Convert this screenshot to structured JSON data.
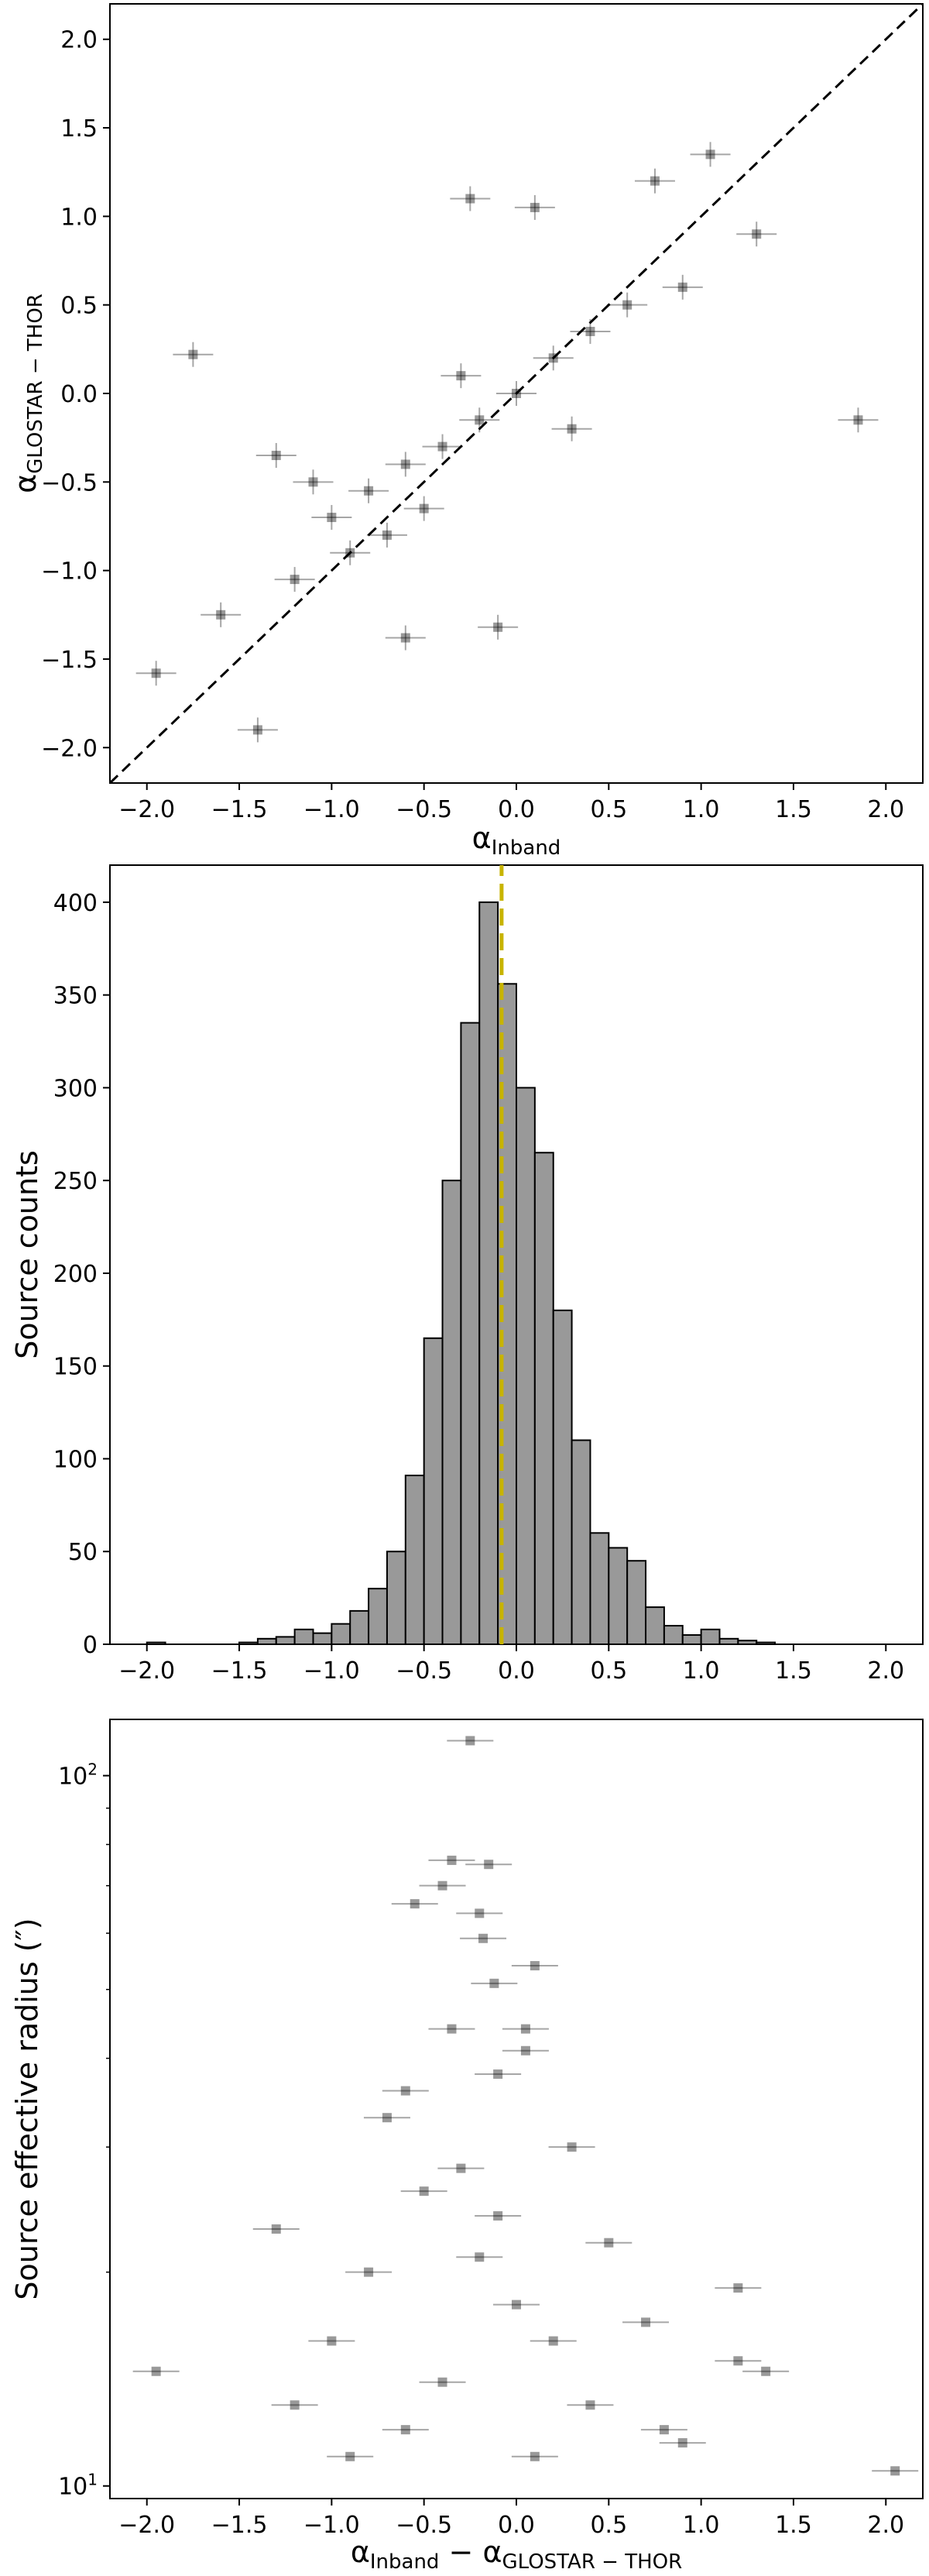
{
  "chart_data": [
    {
      "type": "scatter",
      "xlabel": "α",
      "xlabel_sub": "Inband",
      "ylabel": "α",
      "ylabel_sub": "GLOSTAR − THOR",
      "xlim": [
        -2.2,
        2.2
      ],
      "ylim": [
        -2.2,
        2.2
      ],
      "xticks": [
        -2.0,
        -1.5,
        -1.0,
        -0.5,
        0.0,
        0.5,
        1.0,
        1.5,
        2.0
      ],
      "yticks": [
        -2.0,
        -1.5,
        -1.0,
        -0.5,
        0.0,
        0.5,
        1.0,
        1.5,
        2.0
      ],
      "xtick_labels": [
        "−2.0",
        "−1.5",
        "−1.0",
        "−0.5",
        "0.0",
        "0.5",
        "1.0",
        "1.5",
        "2.0"
      ],
      "ytick_labels": [
        "−2.0",
        "−1.5",
        "−1.0",
        "−0.5",
        "0.0",
        "0.5",
        "1.0",
        "1.5",
        "2.0"
      ],
      "reference_line": {
        "style": "dashed",
        "color": "#000000",
        "from": [
          -2.2,
          -2.2
        ],
        "to": [
          2.2,
          2.2
        ]
      },
      "marker_color": "#000000",
      "points": [
        {
          "x": -1.75,
          "y": 0.22
        },
        {
          "x": 1.85,
          "y": -0.15
        },
        {
          "x": -1.4,
          "y": -1.9
        },
        {
          "x": -1.95,
          "y": -1.58
        },
        {
          "x": -0.25,
          "y": 1.1
        },
        {
          "x": 1.05,
          "y": 1.35
        },
        {
          "x": 0.1,
          "y": 1.05
        },
        {
          "x": 0.75,
          "y": 1.2
        },
        {
          "x": -0.6,
          "y": -1.38
        },
        {
          "x": -0.1,
          "y": -1.32
        },
        {
          "x": 1.3,
          "y": 0.9
        },
        {
          "x": -1.6,
          "y": -1.25
        },
        {
          "x": -1.3,
          "y": -0.35
        },
        {
          "x": -1.0,
          "y": -0.7
        },
        {
          "x": -0.8,
          "y": -0.55
        },
        {
          "x": -0.6,
          "y": -0.4
        },
        {
          "x": -0.4,
          "y": -0.3
        },
        {
          "x": -0.2,
          "y": -0.15
        },
        {
          "x": 0.0,
          "y": 0.0
        },
        {
          "x": 0.2,
          "y": 0.2
        },
        {
          "x": 0.4,
          "y": 0.35
        },
        {
          "x": 0.6,
          "y": 0.5
        },
        {
          "x": -0.9,
          "y": -0.9
        },
        {
          "x": -0.7,
          "y": -0.8
        },
        {
          "x": -1.1,
          "y": -0.5
        },
        {
          "x": -0.5,
          "y": -0.65
        },
        {
          "x": -0.3,
          "y": 0.1
        },
        {
          "x": 0.3,
          "y": -0.2
        },
        {
          "x": -1.2,
          "y": -1.05
        },
        {
          "x": 0.9,
          "y": 0.6
        }
      ]
    },
    {
      "type": "bar",
      "ylabel": "Source counts",
      "xlim": [
        -2.2,
        2.2
      ],
      "ylim": [
        0,
        420
      ],
      "xticks": [
        -2.0,
        -1.5,
        -1.0,
        -0.5,
        0.0,
        0.5,
        1.0,
        1.5,
        2.0
      ],
      "yticks": [
        0,
        50,
        100,
        150,
        200,
        250,
        300,
        350,
        400
      ],
      "xtick_labels": [
        "−2.0",
        "−1.5",
        "−1.0",
        "−0.5",
        "0.0",
        "0.5",
        "1.0",
        "1.5",
        "2.0"
      ],
      "ytick_labels": [
        "0",
        "50",
        "100",
        "150",
        "200",
        "250",
        "300",
        "350",
        "400"
      ],
      "bin_width": 0.1,
      "bin_starts": [
        -2.0,
        -1.9,
        -1.8,
        -1.7,
        -1.6,
        -1.5,
        -1.4,
        -1.3,
        -1.2,
        -1.1,
        -1.0,
        -0.9,
        -0.8,
        -0.7,
        -0.6,
        -0.5,
        -0.4,
        -0.3,
        -0.2,
        -0.1,
        0.0,
        0.1,
        0.2,
        0.3,
        0.4,
        0.5,
        0.6,
        0.7,
        0.8,
        0.9,
        1.0,
        1.1,
        1.2,
        1.3,
        1.4,
        1.5,
        1.6,
        1.7,
        1.8,
        1.9
      ],
      "values": [
        1,
        0,
        0,
        0,
        0,
        1,
        3,
        4,
        8,
        6,
        11,
        18,
        30,
        50,
        91,
        165,
        250,
        335,
        400,
        356,
        300,
        265,
        180,
        110,
        60,
        52,
        45,
        20,
        10,
        5,
        8,
        3,
        2,
        1,
        0,
        0,
        0,
        0,
        0,
        0
      ],
      "bar_color": "#999999",
      "edge_color": "#000000",
      "reference_line": {
        "x": -0.08,
        "style": "dashed",
        "color": "#c8b400"
      }
    },
    {
      "type": "scatter",
      "xlabel": "α",
      "xlabel_sub": "Inband",
      "xlabel_mid": " − α",
      "xlabel_sub2": "GLOSTAR − THOR",
      "ylabel": "Source effective radius (″)",
      "yscale": "log",
      "xlim": [
        -2.2,
        2.2
      ],
      "ylim": [
        9.6,
        120
      ],
      "xticks": [
        -2.0,
        -1.5,
        -1.0,
        -0.5,
        0.0,
        0.5,
        1.0,
        1.5,
        2.0
      ],
      "xtick_labels": [
        "−2.0",
        "−1.5",
        "−1.0",
        "−0.5",
        "0.0",
        "0.5",
        "1.0",
        "1.5",
        "2.0"
      ],
      "yticks": [
        10,
        100
      ],
      "ytick_label_base": "10",
      "ytick_label_exponents": [
        "1",
        "2"
      ],
      "marker_color": "#000000",
      "points": [
        {
          "x": -0.25,
          "y": 112
        },
        {
          "x": -0.35,
          "y": 76
        },
        {
          "x": -0.15,
          "y": 75
        },
        {
          "x": -0.4,
          "y": 70
        },
        {
          "x": -0.55,
          "y": 66
        },
        {
          "x": -0.2,
          "y": 64
        },
        {
          "x": -0.18,
          "y": 59
        },
        {
          "x": 0.1,
          "y": 54
        },
        {
          "x": -0.12,
          "y": 51
        },
        {
          "x": -0.35,
          "y": 44
        },
        {
          "x": 0.05,
          "y": 44
        },
        {
          "x": 0.05,
          "y": 41
        },
        {
          "x": -0.7,
          "y": 33
        },
        {
          "x": -1.3,
          "y": 23
        },
        {
          "x": -1.95,
          "y": 14.5
        },
        {
          "x": 2.05,
          "y": 10.5
        },
        {
          "x": 1.2,
          "y": 15
        },
        {
          "x": 1.35,
          "y": 14.5
        },
        {
          "x": 1.2,
          "y": 19
        },
        {
          "x": -0.6,
          "y": 36
        },
        {
          "x": -0.1,
          "y": 38
        },
        {
          "x": 0.3,
          "y": 30
        },
        {
          "x": -0.3,
          "y": 28
        },
        {
          "x": -0.5,
          "y": 26
        },
        {
          "x": 0.5,
          "y": 22
        },
        {
          "x": -0.8,
          "y": 20
        },
        {
          "x": 0.7,
          "y": 17
        },
        {
          "x": -1.0,
          "y": 16
        },
        {
          "x": 0.0,
          "y": 18
        },
        {
          "x": -0.2,
          "y": 21
        },
        {
          "x": 0.2,
          "y": 16
        },
        {
          "x": -0.4,
          "y": 14
        },
        {
          "x": 0.4,
          "y": 13
        },
        {
          "x": -0.6,
          "y": 12
        },
        {
          "x": 0.8,
          "y": 12
        },
        {
          "x": -1.2,
          "y": 13
        },
        {
          "x": 0.1,
          "y": 11
        },
        {
          "x": -0.1,
          "y": 24
        },
        {
          "x": 0.9,
          "y": 11.5
        },
        {
          "x": -0.9,
          "y": 11
        }
      ]
    }
  ]
}
